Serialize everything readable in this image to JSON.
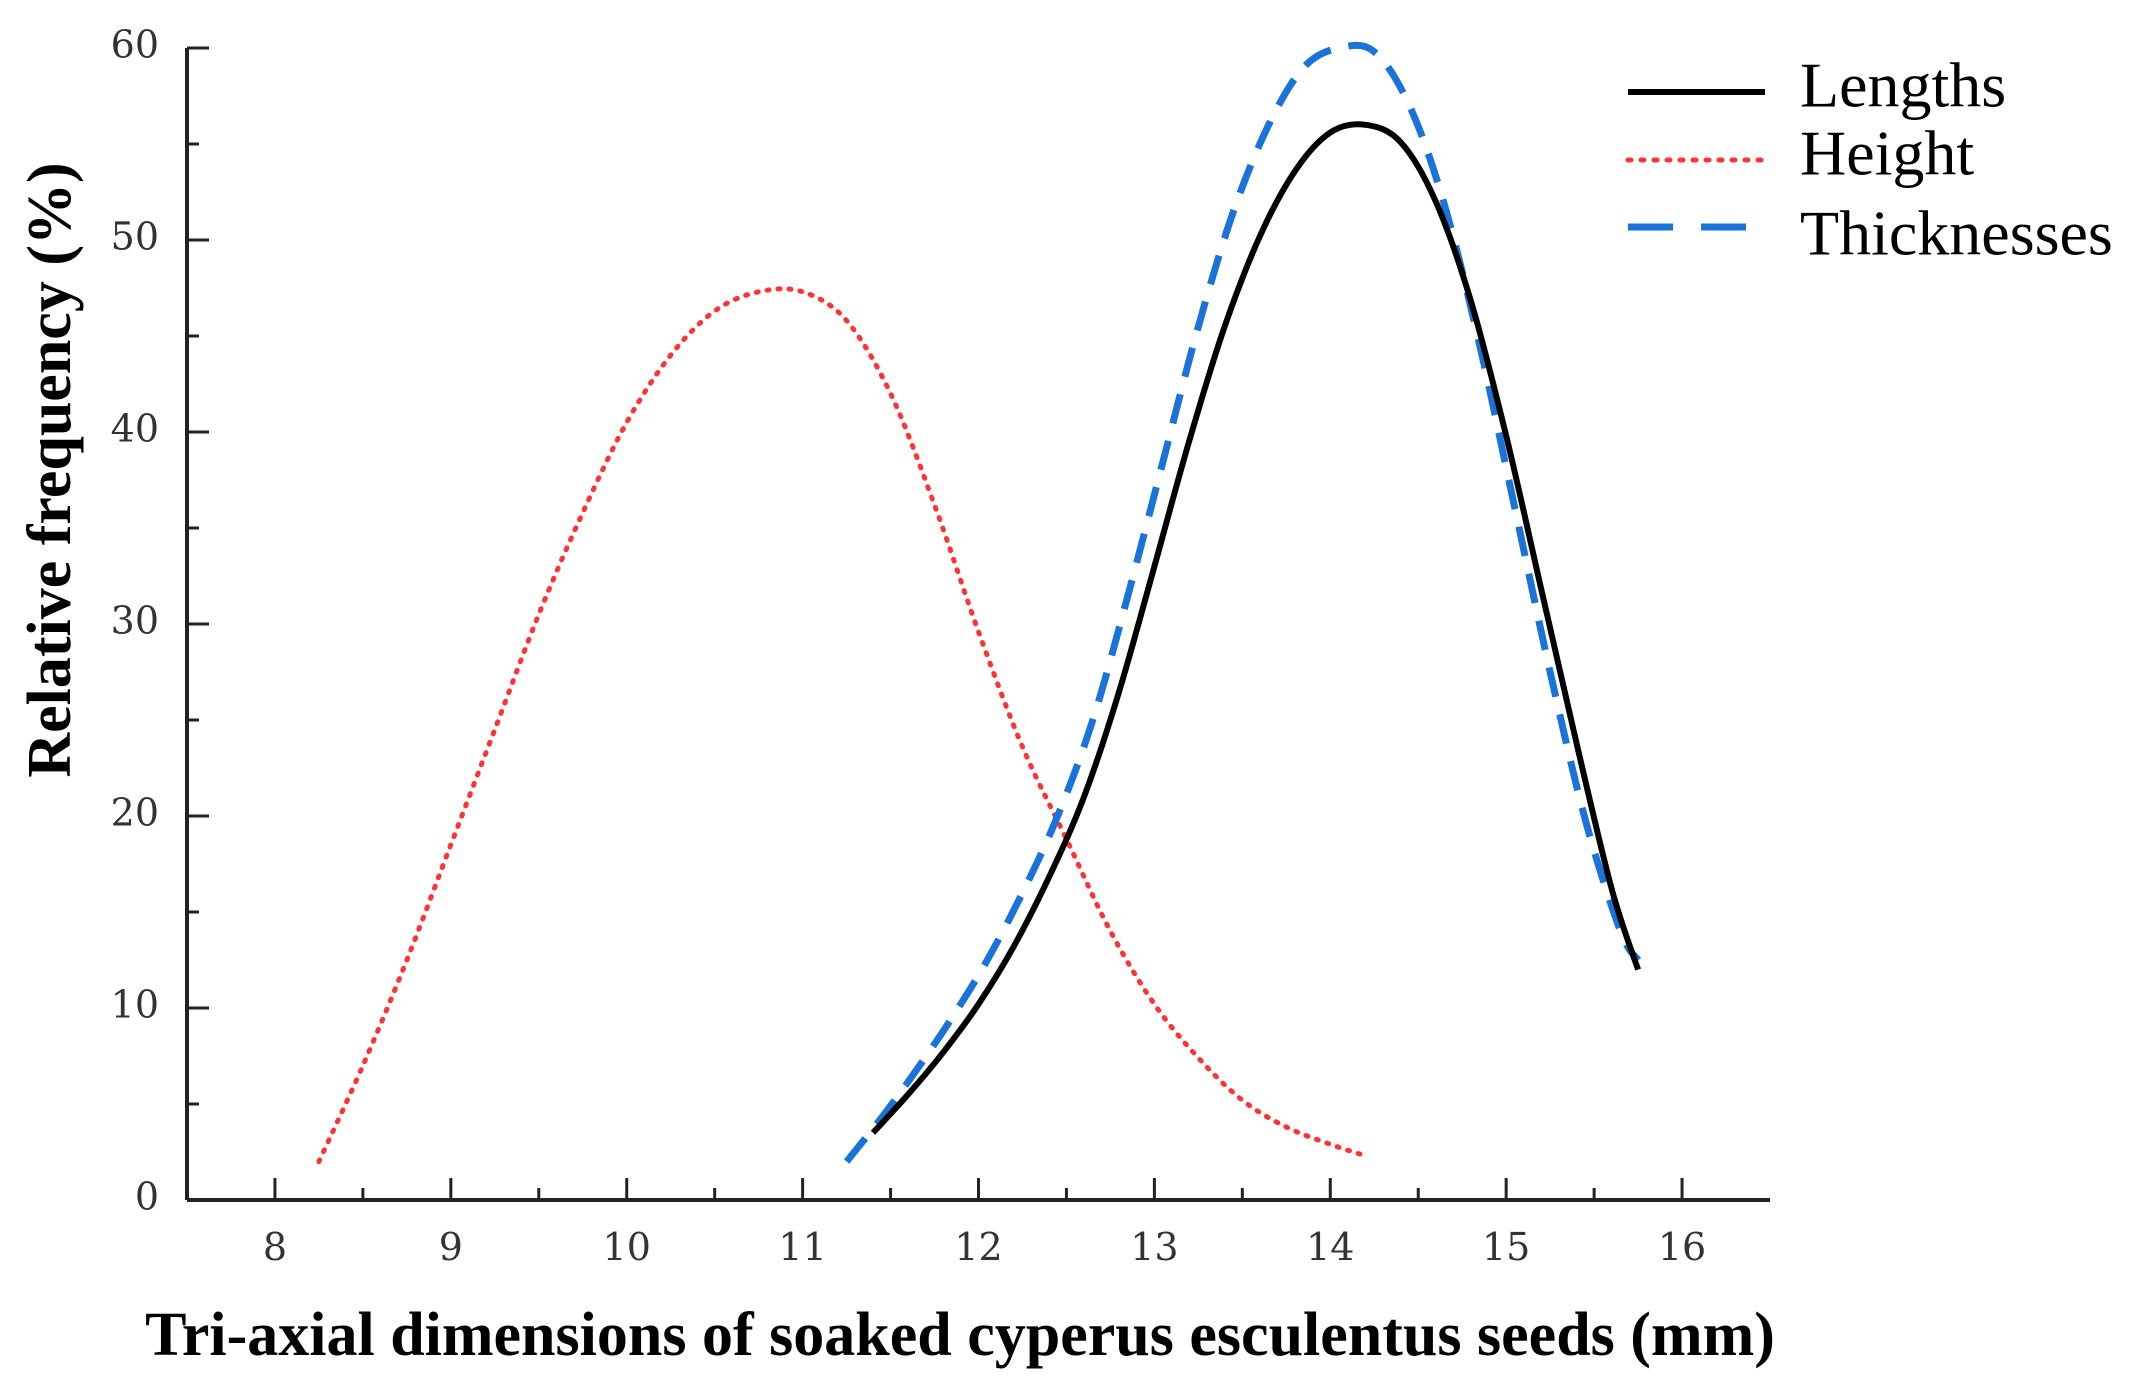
{
  "chart_data": {
    "type": "line",
    "title": "",
    "xlabel": "Tri-axial dimensions of soaked cyperus esculentus seeds (mm)",
    "ylabel": "Relative frequency  (%)",
    "xlim": [
      7.5,
      16.5
    ],
    "ylim": [
      0,
      60
    ],
    "xticks": [
      8,
      9,
      10,
      11,
      12,
      13,
      14,
      15,
      16
    ],
    "yticks": [
      0,
      10,
      20,
      30,
      40,
      50,
      60
    ],
    "grid": false,
    "legend_position": "top-right",
    "series": [
      {
        "name": "Lengths",
        "color": "#000000",
        "style": "solid",
        "x": [
          11.4,
          11.6,
          11.8,
          12.0,
          12.2,
          12.4,
          12.6,
          12.8,
          13.0,
          13.2,
          13.4,
          13.6,
          13.8,
          14.0,
          14.2,
          14.4,
          14.6,
          14.8,
          15.0,
          15.2,
          15.4,
          15.6,
          15.75
        ],
        "y": [
          3.5,
          5.5,
          7.7,
          10.2,
          13.2,
          16.8,
          21.0,
          26.5,
          33.0,
          39.6,
          45.5,
          50.2,
          53.6,
          55.6,
          56.0,
          55.1,
          52.0,
          46.8,
          39.8,
          31.8,
          23.8,
          16.2,
          12.0
        ]
      },
      {
        "name": "Height",
        "color": "#ff3333",
        "style": "dotted",
        "x": [
          8.25,
          8.5,
          8.75,
          9.0,
          9.25,
          9.5,
          9.75,
          10.0,
          10.25,
          10.5,
          10.75,
          11.0,
          11.25,
          11.5,
          11.75,
          12.0,
          12.25,
          12.5,
          12.75,
          13.0,
          13.25,
          13.5,
          13.75,
          14.0,
          14.2
        ],
        "y": [
          2.0,
          7.0,
          12.5,
          18.5,
          24.5,
          30.5,
          35.8,
          40.5,
          44.0,
          46.3,
          47.3,
          47.3,
          45.8,
          42.0,
          36.2,
          29.6,
          23.6,
          18.8,
          14.0,
          10.2,
          7.4,
          5.2,
          3.8,
          2.9,
          2.3
        ]
      },
      {
        "name": "Thicknesses",
        "color": "#1a73d8",
        "style": "dashed",
        "x": [
          11.25,
          11.45,
          11.65,
          11.85,
          12.05,
          12.25,
          12.45,
          12.65,
          12.85,
          13.05,
          13.25,
          13.45,
          13.65,
          13.85,
          14.05,
          14.25,
          14.45,
          14.65,
          14.85,
          15.05,
          15.25,
          15.45,
          15.65,
          15.75
        ],
        "y": [
          2.0,
          4.3,
          6.8,
          9.5,
          12.5,
          16.0,
          20.0,
          25.0,
          31.5,
          38.5,
          45.5,
          51.5,
          56.0,
          59.0,
          60.0,
          59.8,
          57.0,
          51.8,
          44.5,
          36.0,
          27.5,
          19.8,
          14.0,
          12.5
        ]
      }
    ]
  }
}
